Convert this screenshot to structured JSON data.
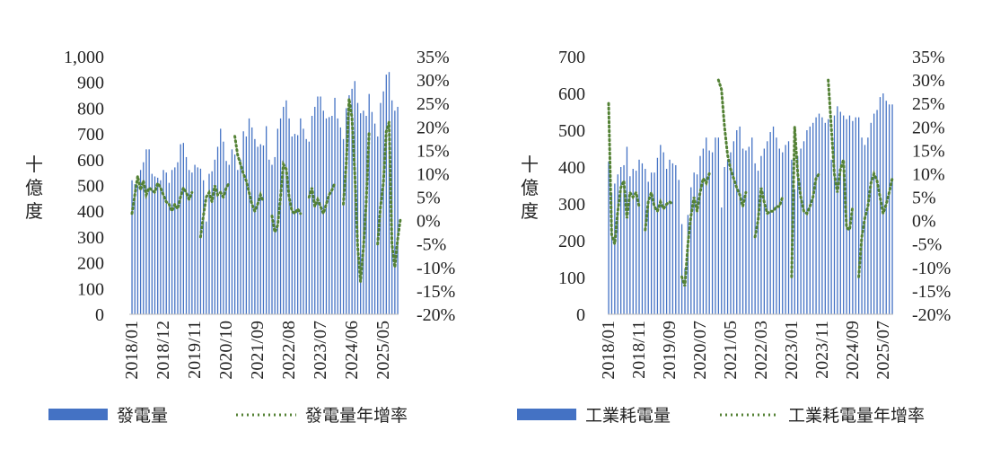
{
  "chart_data": [
    {
      "type": "bar+line",
      "ylabel": "十億度",
      "left_axis": {
        "min": 0,
        "max": 1000,
        "step": 100,
        "ticks": [
          "0",
          "100",
          "200",
          "300",
          "400",
          "500",
          "600",
          "700",
          "800",
          "900",
          "1,000"
        ]
      },
      "right_axis": {
        "min": -20,
        "max": 35,
        "step": 5,
        "ticks": [
          "-20%",
          "-15%",
          "-10%",
          "-5%",
          "0%",
          "5%",
          "10%",
          "15%",
          "20%",
          "25%",
          "30%",
          "35%"
        ]
      },
      "x_ticks": [
        "2018/01",
        "2018/12",
        "2019/11",
        "2020/10",
        "2021/09",
        "2022/08",
        "2023/07",
        "2024/06",
        "2025/05"
      ],
      "start_month": "2018/01",
      "series": [
        {
          "name": "發電量",
          "kind": "bar",
          "color": "#4472C4",
          "values": [
            520,
            505,
            500,
            560,
            590,
            640,
            640,
            545,
            535,
            530,
            520,
            560,
            550,
            510,
            560,
            570,
            590,
            660,
            665,
            610,
            560,
            550,
            580,
            570,
            565,
            520,
            360,
            545,
            555,
            600,
            650,
            720,
            670,
            595,
            580,
            640,
            620,
            560,
            600,
            710,
            690,
            760,
            725,
            680,
            650,
            660,
            655,
            730,
            600,
            580,
            610,
            720,
            760,
            805,
            830,
            760,
            690,
            700,
            695,
            760,
            720,
            680,
            670,
            770,
            805,
            845,
            845,
            790,
            760,
            765,
            770,
            840,
            760,
            725,
            680,
            800,
            850,
            875,
            905,
            820,
            780,
            790,
            770,
            855,
            785,
            740,
            690,
            820,
            865,
            930,
            940,
            830,
            790,
            805
          ]
        },
        {
          "name": "發電量年增率",
          "kind": "line",
          "color": "#548235",
          "values": [
            1.5,
            5.5,
            9.5,
            6.5,
            8.5,
            5.5,
            7.0,
            6.5,
            6.0,
            8.0,
            7.0,
            5.5,
            4.0,
            3.5,
            2.0,
            3.5,
            2.5,
            5.0,
            7.0,
            6.0,
            4.5,
            6.0,
            null,
            null,
            -3.5,
            1.0,
            5.0,
            6.0,
            4.0,
            7.5,
            5.5,
            6.0,
            5.0,
            7.0,
            8.0,
            null,
            18.0,
            14.0,
            12.0,
            10.0,
            8.5,
            6.0,
            3.5,
            2.0,
            3.5,
            5.5,
            4.0,
            null,
            null,
            1.0,
            -2.5,
            -1.0,
            5.0,
            12.0,
            11.0,
            5.0,
            2.0,
            1.5,
            2.5,
            1.5,
            null,
            null,
            5.0,
            7.0,
            3.0,
            4.5,
            3.0,
            1.5,
            3.5,
            5.5,
            6.5,
            8.0,
            null,
            null,
            3.5,
            12.0,
            26.0,
            22.0,
            10.0,
            -5.5,
            -13.0,
            -6.0,
            4.0,
            19.0,
            null,
            null,
            -5.0,
            3.0,
            8.0,
            19.0,
            21.0,
            -5.0,
            -10.0,
            -4.0,
            0.5
          ]
        }
      ]
    },
    {
      "type": "bar+line",
      "ylabel": "十億度",
      "left_axis": {
        "min": 0,
        "max": 700,
        "step": 100,
        "ticks": [
          "0",
          "100",
          "200",
          "300",
          "400",
          "500",
          "600",
          "700"
        ]
      },
      "right_axis": {
        "min": -20,
        "max": 35,
        "step": 5,
        "ticks": [
          "-20%",
          "-15%",
          "-10%",
          "-5%",
          "0%",
          "5%",
          "10%",
          "15%",
          "20%",
          "25%",
          "30%",
          "35%"
        ]
      },
      "x_ticks": [
        "2018/01",
        "2018/11",
        "2019/09",
        "2020/07",
        "2021/05",
        "2022/03",
        "2023/01",
        "2023/11",
        "2024/09",
        "2025/07"
      ],
      "start_month": "2018/01",
      "series": [
        {
          "name": "工業耗電量",
          "kind": "bar",
          "color": "#4472C4",
          "values": [
            415,
            330,
            355,
            380,
            400,
            405,
            455,
            375,
            395,
            390,
            420,
            410,
            395,
            360,
            385,
            385,
            425,
            460,
            440,
            395,
            420,
            410,
            405,
            365,
            245,
            125,
            270,
            345,
            385,
            380,
            430,
            450,
            480,
            445,
            440,
            480,
            480,
            290,
            400,
            420,
            440,
            470,
            500,
            510,
            450,
            445,
            455,
            480,
            410,
            390,
            430,
            450,
            470,
            495,
            510,
            480,
            450,
            440,
            460,
            470,
            420,
            340,
            430,
            450,
            470,
            500,
            510,
            520,
            535,
            545,
            535,
            520,
            530,
            420,
            540,
            565,
            550,
            540,
            530,
            540,
            525,
            535,
            535,
            480,
            460,
            480,
            520,
            545,
            555,
            590,
            600,
            580,
            570,
            570
          ]
        },
        {
          "name": "工業耗電量年增率",
          "kind": "line",
          "color": "#548235",
          "values": [
            25.0,
            -3.0,
            -5.0,
            2.0,
            7.0,
            8.5,
            0.5,
            6.0,
            5.0,
            6.0,
            3.0,
            null,
            -2.0,
            4.0,
            6.0,
            3.0,
            2.0,
            4.0,
            2.5,
            3.5,
            4.0,
            3.5,
            null,
            null,
            -12.0,
            -14.0,
            -5.0,
            1.0,
            5.0,
            2.0,
            6.0,
            9.0,
            8.0,
            10.0,
            null,
            null,
            30.0,
            28.0,
            20.0,
            14.0,
            11.0,
            9.0,
            7.0,
            5.5,
            3.0,
            6.0,
            null,
            null,
            -3.5,
            0.0,
            7.0,
            4.0,
            1.5,
            2.0,
            2.0,
            3.0,
            3.0,
            5.0,
            null,
            null,
            -12.0,
            20.0,
            10.0,
            5.0,
            2.0,
            1.5,
            3.0,
            5.0,
            9.0,
            10.0,
            null,
            null,
            30.0,
            20.0,
            10.0,
            6.0,
            11.0,
            13.0,
            -1.5,
            -2.0,
            3.0,
            null,
            -12.0,
            -3.5,
            0.5,
            3.0,
            8.0,
            10.0,
            8.5,
            5.0,
            1.5,
            3.5,
            6.0,
            9.0
          ]
        }
      ]
    }
  ]
}
